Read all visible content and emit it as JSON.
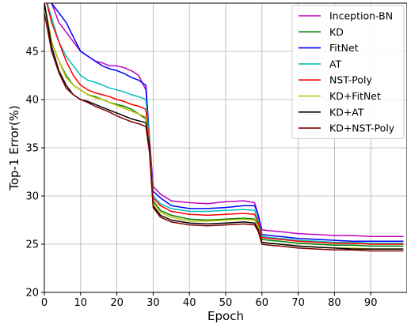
{
  "chart_data": {
    "type": "line",
    "title": "",
    "xlabel": "Epoch",
    "ylabel": "Top-1 Error(%)",
    "xlim": [
      0,
      100
    ],
    "ylim": [
      20,
      50
    ],
    "xticks": [
      0,
      10,
      20,
      30,
      40,
      50,
      60,
      70,
      80,
      90
    ],
    "yticks": [
      20,
      25,
      30,
      35,
      40,
      45
    ],
    "grid": true,
    "legend_position": "top-right",
    "series": [
      {
        "name": "Inception-BN",
        "color": "#bf00bf",
        "x": [
          0,
          2,
          4,
          6,
          8,
          10,
          12,
          14,
          16,
          18,
          20,
          22,
          24,
          26,
          28,
          29,
          30,
          32,
          35,
          40,
          45,
          50,
          55,
          58,
          59,
          60,
          62,
          65,
          70,
          75,
          80,
          85,
          90,
          95,
          99
        ],
        "y": [
          52,
          50,
          48,
          47,
          46,
          45,
          44.5,
          44,
          43.8,
          43.5,
          43.5,
          43.3,
          43,
          42.5,
          41,
          36,
          31,
          30.2,
          29.5,
          29.3,
          29.2,
          29.4,
          29.5,
          29.3,
          28,
          26.5,
          26.4,
          26.3,
          26.1,
          26,
          25.9,
          25.9,
          25.8,
          25.8,
          25.8
        ]
      },
      {
        "name": "KD",
        "color": "#008000",
        "x": [
          0,
          2,
          4,
          6,
          8,
          10,
          12,
          14,
          16,
          18,
          20,
          22,
          24,
          26,
          28,
          29,
          30,
          32,
          35,
          40,
          45,
          50,
          55,
          58,
          59,
          60,
          62,
          65,
          70,
          75,
          80,
          85,
          90,
          95,
          99
        ],
        "y": [
          50,
          46,
          44,
          42.5,
          41.5,
          41,
          40.5,
          40.3,
          40,
          39.7,
          39.5,
          39.3,
          39,
          38.5,
          38,
          35,
          29.5,
          28.5,
          28,
          27.6,
          27.5,
          27.6,
          27.7,
          27.6,
          27,
          25.5,
          25.4,
          25.3,
          25.1,
          25,
          24.9,
          24.9,
          24.8,
          24.8,
          24.8
        ]
      },
      {
        "name": "FitNet",
        "color": "#0000ff",
        "x": [
          0,
          2,
          4,
          6,
          8,
          10,
          12,
          14,
          16,
          18,
          20,
          22,
          24,
          26,
          28,
          29,
          30,
          32,
          35,
          40,
          45,
          50,
          55,
          58,
          59,
          60,
          62,
          65,
          70,
          75,
          80,
          85,
          90,
          95,
          99
        ],
        "y": [
          52,
          50,
          49,
          48,
          46.5,
          45,
          44.5,
          44,
          43.5,
          43.2,
          43,
          42.7,
          42.3,
          42,
          41.5,
          36,
          30.5,
          29.8,
          29,
          28.7,
          28.7,
          28.8,
          29,
          29,
          28,
          26,
          25.9,
          25.8,
          25.6,
          25.5,
          25.4,
          25.3,
          25.3,
          25.3,
          25.3
        ]
      },
      {
        "name": "AT",
        "color": "#00bfbf",
        "x": [
          0,
          2,
          4,
          6,
          8,
          10,
          12,
          14,
          16,
          18,
          20,
          22,
          24,
          26,
          28,
          29,
          30,
          32,
          35,
          40,
          45,
          50,
          55,
          58,
          59,
          60,
          62,
          65,
          70,
          75,
          80,
          85,
          90,
          95,
          99
        ],
        "y": [
          51,
          48.5,
          46,
          44.5,
          43.5,
          42.5,
          42,
          41.8,
          41.5,
          41.2,
          41,
          40.8,
          40.5,
          40.3,
          40,
          36,
          30,
          29.2,
          28.7,
          28.4,
          28.4,
          28.5,
          28.6,
          28.5,
          27.5,
          25.8,
          25.7,
          25.6,
          25.4,
          25.3,
          25.2,
          25.2,
          25.1,
          25.1,
          25.1
        ]
      },
      {
        "name": "NST-Poly",
        "color": "#ff0000",
        "x": [
          0,
          2,
          4,
          6,
          8,
          10,
          12,
          14,
          16,
          18,
          20,
          22,
          24,
          26,
          28,
          29,
          30,
          32,
          35,
          40,
          45,
          50,
          55,
          58,
          59,
          60,
          62,
          65,
          70,
          75,
          80,
          85,
          90,
          95,
          99
        ],
        "y": [
          51,
          48,
          46,
          44,
          42.5,
          41.5,
          41,
          40.7,
          40.5,
          40.3,
          40,
          39.8,
          39.5,
          39.3,
          39,
          35.5,
          29.8,
          29,
          28.4,
          28.1,
          28,
          28.1,
          28.2,
          28.1,
          27.2,
          25.7,
          25.6,
          25.5,
          25.3,
          25.2,
          25.1,
          25.1,
          25,
          25,
          25
        ]
      },
      {
        "name": "KD+FitNet",
        "color": "#bfbf00",
        "x": [
          0,
          2,
          4,
          6,
          8,
          10,
          12,
          14,
          16,
          18,
          20,
          22,
          24,
          26,
          28,
          29,
          30,
          32,
          35,
          40,
          45,
          50,
          55,
          58,
          59,
          60,
          62,
          65,
          70,
          75,
          80,
          85,
          90,
          95,
          99
        ],
        "y": [
          50,
          46,
          44,
          42.3,
          41.5,
          41,
          40.5,
          40.2,
          40,
          39.7,
          39.4,
          39.1,
          38.8,
          38.5,
          38.2,
          35,
          29.3,
          28.3,
          27.8,
          27.4,
          27.4,
          27.5,
          27.6,
          27.5,
          26.8,
          25.2,
          25.1,
          25,
          24.8,
          24.7,
          24.6,
          24.6,
          24.5,
          24.5,
          24.5
        ]
      },
      {
        "name": "KD+AT",
        "color": "#000000",
        "x": [
          0,
          2,
          4,
          6,
          8,
          10,
          12,
          14,
          16,
          18,
          20,
          22,
          24,
          26,
          28,
          29,
          30,
          32,
          35,
          40,
          45,
          50,
          55,
          58,
          59,
          60,
          62,
          65,
          70,
          75,
          80,
          85,
          90,
          95,
          99
        ],
        "y": [
          50,
          45.5,
          43,
          41.5,
          40.5,
          40,
          39.8,
          39.5,
          39.2,
          38.9,
          38.6,
          38.3,
          38,
          37.8,
          37.6,
          35,
          29,
          28,
          27.5,
          27.2,
          27.1,
          27.2,
          27.3,
          27.2,
          26.5,
          25.2,
          25.1,
          25,
          24.8,
          24.7,
          24.6,
          24.5,
          24.5,
          24.5,
          24.5
        ]
      },
      {
        "name": "KD+NST-Poly",
        "color": "#800000",
        "x": [
          0,
          2,
          4,
          6,
          8,
          10,
          12,
          14,
          16,
          18,
          20,
          22,
          24,
          26,
          28,
          29,
          30,
          32,
          35,
          40,
          45,
          50,
          55,
          58,
          59,
          60,
          62,
          65,
          70,
          75,
          80,
          85,
          90,
          95,
          99
        ],
        "y": [
          49,
          45,
          42.8,
          41.2,
          40.5,
          40,
          39.7,
          39.3,
          39,
          38.7,
          38.3,
          38,
          37.7,
          37.5,
          37.2,
          34.5,
          28.8,
          27.8,
          27.3,
          27,
          26.9,
          27,
          27.1,
          27,
          26.3,
          25,
          24.9,
          24.8,
          24.6,
          24.5,
          24.4,
          24.4,
          24.3,
          24.3,
          24.3
        ]
      }
    ]
  }
}
